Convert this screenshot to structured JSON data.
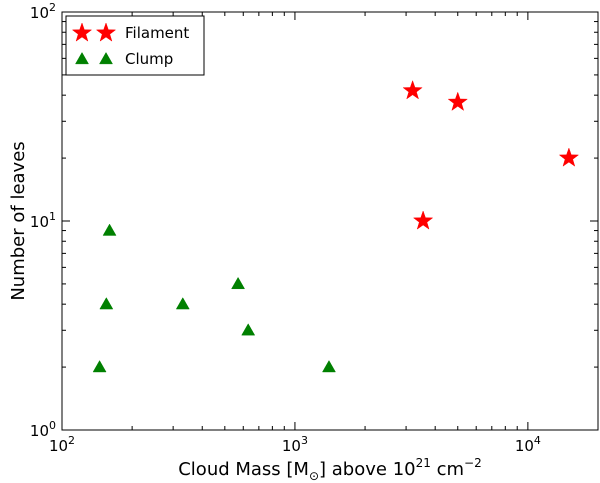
{
  "chart_data": {
    "type": "scatter",
    "xscale": "log",
    "yscale": "log",
    "xlim": [
      100,
      20000
    ],
    "ylim": [
      1,
      100
    ],
    "x_ticks": [
      100,
      1000,
      10000
    ],
    "x_tick_labels": [
      {
        "base": "10",
        "exp": "2"
      },
      {
        "base": "10",
        "exp": "3"
      },
      {
        "base": "10",
        "exp": "4"
      }
    ],
    "y_ticks": [
      1,
      10,
      100
    ],
    "y_tick_labels": [
      {
        "base": "10",
        "exp": "0"
      },
      {
        "base": "10",
        "exp": "1"
      },
      {
        "base": "10",
        "exp": "2"
      }
    ],
    "xlabel": {
      "pre": "Cloud Mass [M",
      "sub": "⊙",
      "mid": "] above 10",
      "sup1": "21",
      "mid2": " cm",
      "sup2": "−2"
    },
    "ylabel": "Number of leaves",
    "legend": {
      "position": "top-left"
    },
    "series": [
      {
        "name": "Filament",
        "marker": "star",
        "color": "#ff0000",
        "points": [
          [
            3200,
            42
          ],
          [
            5000,
            37
          ],
          [
            3550,
            10
          ],
          [
            15000,
            20
          ]
        ]
      },
      {
        "name": "Clump",
        "marker": "triangle",
        "color": "#008000",
        "points": [
          [
            145,
            2
          ],
          [
            155,
            4
          ],
          [
            160,
            9
          ],
          [
            330,
            4
          ],
          [
            570,
            5
          ],
          [
            630,
            3
          ],
          [
            1400,
            2
          ]
        ]
      }
    ]
  }
}
